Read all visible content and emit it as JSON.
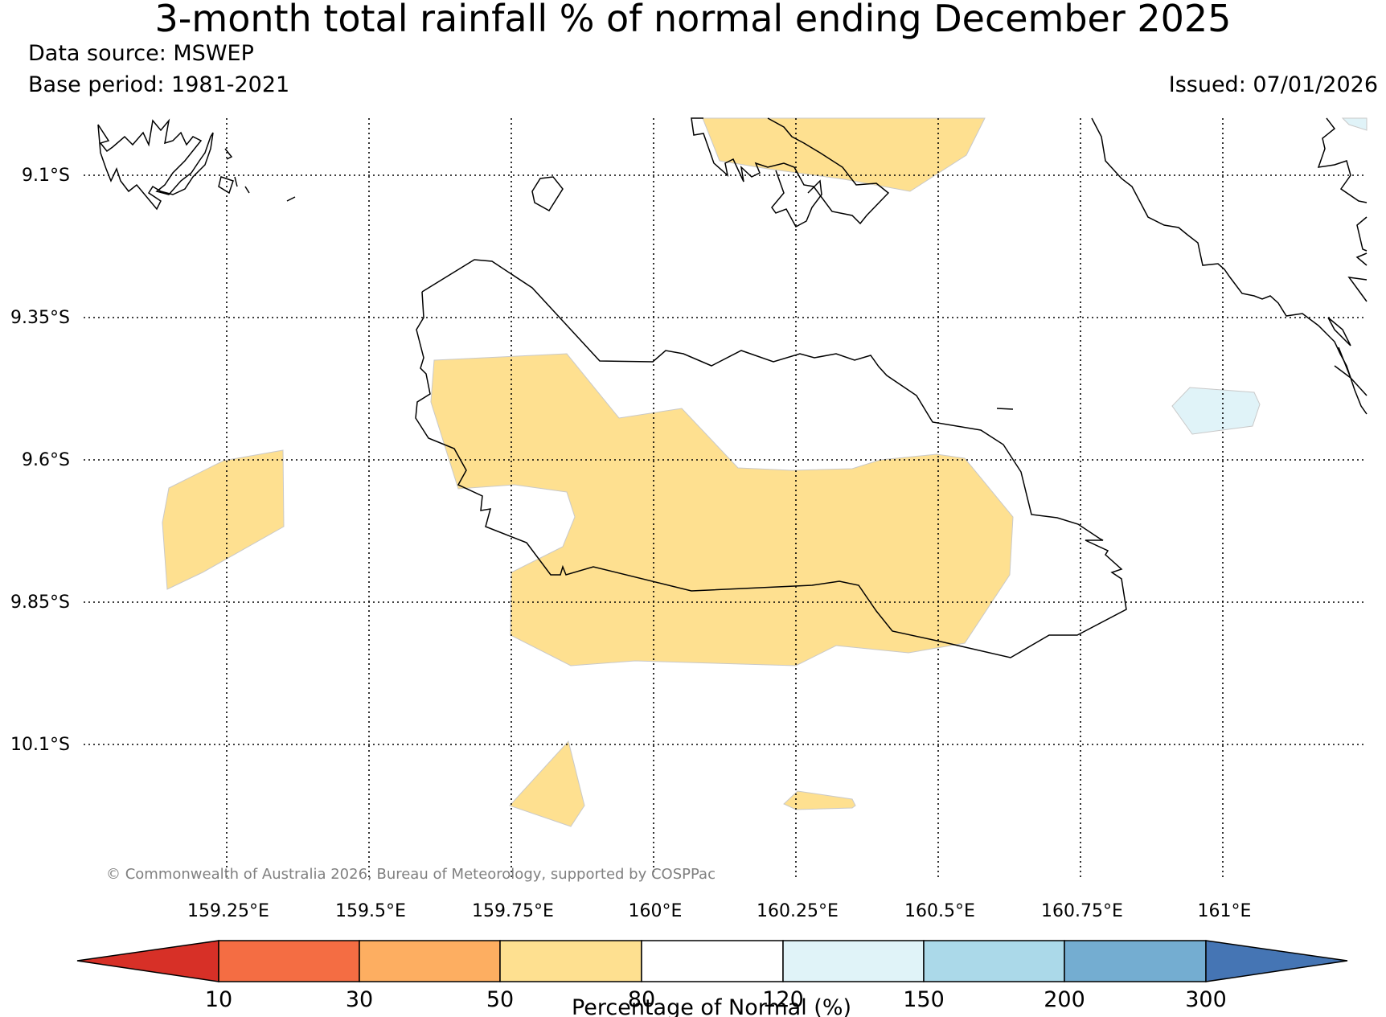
{
  "title": "3-month total rainfall % of normal ending December 2025",
  "data_source": "Data source: MSWEP",
  "base_period": "Base period: 1981-2021",
  "issued": "Issued: 07/01/2026",
  "copyright": "© Commonwealth of Australia 2026, Bureau of Meteorology, supported by COSPPac",
  "map": {
    "lat_labels": [
      "9.1°S",
      "9.35°S",
      "9.6°S",
      "9.85°S",
      "10.1°S"
    ],
    "lon_labels": [
      "159.25°E",
      "159.5°E",
      "159.75°E",
      "160°E",
      "160.25°E",
      "160.5°E",
      "160.75°E",
      "161°E"
    ],
    "regions": [
      {
        "name": "main-region",
        "category": "50-80"
      },
      {
        "name": "west-region",
        "category": "50-80"
      },
      {
        "name": "north-region",
        "category": "50-80"
      },
      {
        "name": "south-region-1",
        "category": "50-80"
      },
      {
        "name": "south-region-2",
        "category": "50-80"
      },
      {
        "name": "east-region",
        "category": "120-150"
      },
      {
        "name": "northeast-corner-region",
        "category": "120-150"
      }
    ]
  },
  "colorbar": {
    "label": "Percentage of Normal (%)",
    "ticks": [
      "10",
      "30",
      "50",
      "80",
      "120",
      "150",
      "200",
      "300"
    ],
    "colors": [
      "#d73027",
      "#f46d43",
      "#fdae61",
      "#fee090",
      "#ffffff",
      "#e0f3f8",
      "#abd9e9",
      "#74add1",
      "#4575b4"
    ]
  },
  "colors": {
    "below_normal": "#fee090",
    "above_normal": "#e0f3f8",
    "coast": "#000000"
  }
}
